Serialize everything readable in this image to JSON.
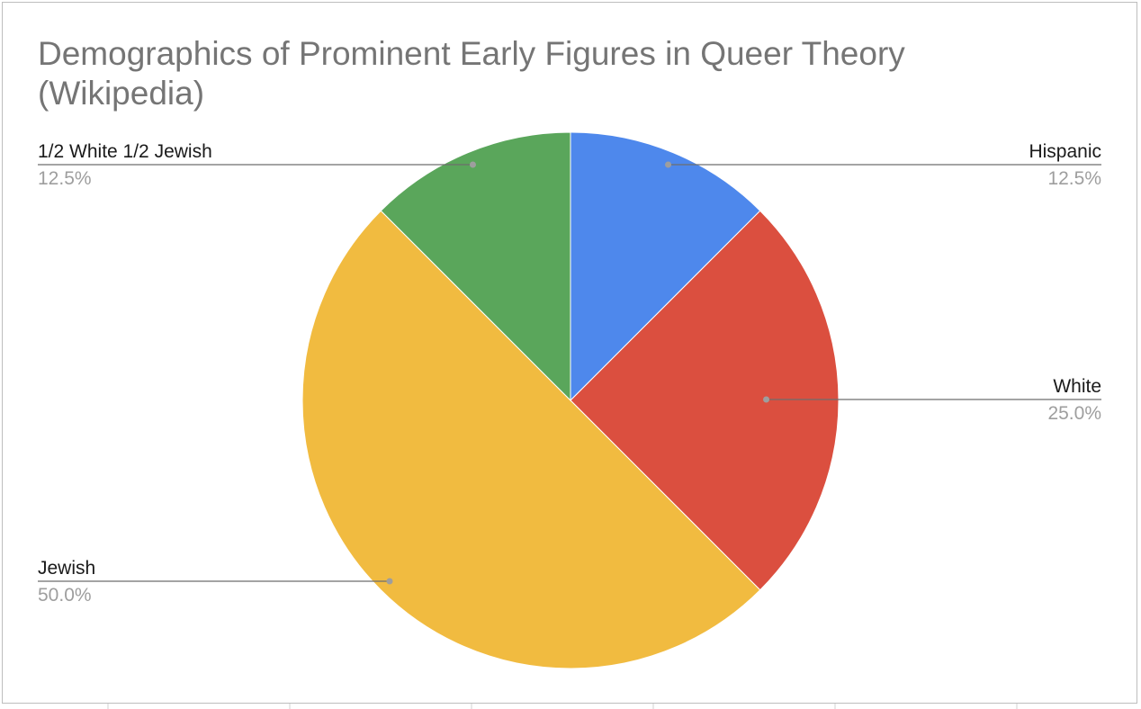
{
  "chart_data": {
    "type": "pie",
    "title": "Demographics of Prominent Early Figures in Queer Theory (Wikipedia)",
    "slices": [
      {
        "label": "Hispanic",
        "value": 12.5,
        "display": "12.5%",
        "color": "#4e88ec",
        "label_side": "right"
      },
      {
        "label": "White",
        "value": 25.0,
        "display": "25.0%",
        "color": "#db4f3f",
        "label_side": "right"
      },
      {
        "label": "Jewish",
        "value": 50.0,
        "display": "50.0%",
        "color": "#f1bb40",
        "label_side": "left"
      },
      {
        "label": "1/2 White 1/2 Jewish",
        "value": 12.5,
        "display": "12.5%",
        "color": "#5aa65b",
        "label_side": "left"
      }
    ],
    "legend": "none",
    "label_style": "callouts with name and percentage"
  }
}
